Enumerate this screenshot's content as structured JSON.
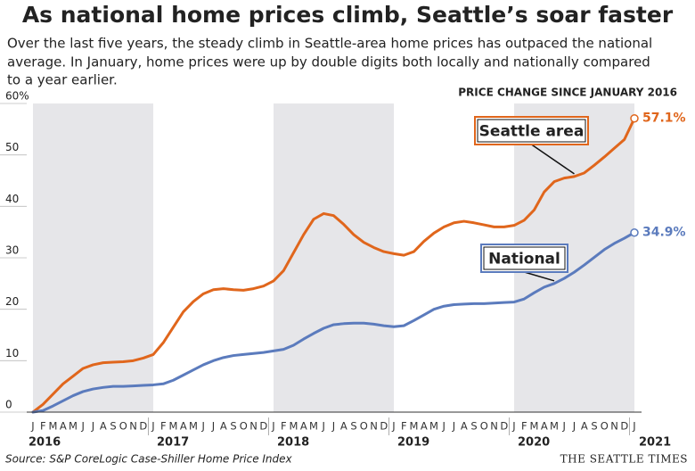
{
  "chart_data": {
    "type": "line",
    "title": "As national home prices climb, Seattle’s soar faster",
    "subtitle_lines": [
      "Over the last five years, the steady climb in Seattle-area home prices has outpaced the national",
      "average. In January, home prices were up by double digits both locally and nationally compared",
      "to a year earlier."
    ],
    "y_label": "PRICE CHANGE SINCE JANUARY 2016",
    "source": "Source: S&P CoreLogic Case-Shiller Home Price Index",
    "credit": "THE SEATTLE TIMES",
    "categories": [
      "J",
      "F",
      "M",
      "A",
      "M",
      "J",
      "J",
      "A",
      "S",
      "O",
      "N",
      "D",
      "J",
      "F",
      "M",
      "A",
      "M",
      "J",
      "J",
      "A",
      "S",
      "O",
      "N",
      "D",
      "J",
      "F",
      "M",
      "A",
      "M",
      "J",
      "J",
      "A",
      "S",
      "O",
      "N",
      "D",
      "J",
      "F",
      "M",
      "A",
      "M",
      "J",
      "J",
      "A",
      "S",
      "O",
      "N",
      "D",
      "J",
      "F",
      "M",
      "A",
      "M",
      "J",
      "J",
      "A",
      "S",
      "O",
      "N",
      "D",
      "J"
    ],
    "years": [
      "2016",
      "2017",
      "2018",
      "2019",
      "2020",
      "2021"
    ],
    "ylim": [
      0,
      60
    ],
    "yticks": [
      0,
      10,
      20,
      30,
      40,
      50,
      {
        "value": 60,
        "label": "60%"
      }
    ],
    "series": [
      {
        "name": "Seattle area",
        "color": "#e0661c",
        "values": [
          0,
          1.5,
          3.5,
          5.5,
          7,
          8.5,
          9.2,
          9.6,
          9.7,
          9.8,
          10,
          10.5,
          11.2,
          13.5,
          16.5,
          19.5,
          21.5,
          23,
          23.8,
          24,
          23.8,
          23.7,
          24,
          24.5,
          25.5,
          27.5,
          31,
          34.5,
          37.5,
          38.6,
          38.2,
          36.5,
          34.5,
          33,
          32,
          31.2,
          30.8,
          30.5,
          31.2,
          33.2,
          34.8,
          36,
          36.8,
          37.1,
          36.8,
          36.4,
          36,
          36,
          36.3,
          37.3,
          39.3,
          42.8,
          44.8,
          45.5,
          45.8,
          46.5,
          48,
          49.6,
          51.3,
          53,
          57.1
        ],
        "value_labels": [
          null,
          null,
          null,
          null,
          null,
          null,
          null,
          null,
          null,
          null,
          null,
          null,
          null,
          null,
          null,
          null,
          null,
          null,
          null,
          null,
          null,
          null,
          null,
          null,
          null,
          null,
          null,
          null,
          null,
          null,
          null,
          null,
          null,
          null,
          null,
          null,
          null,
          null,
          null,
          null,
          null,
          null,
          null,
          null,
          null,
          null,
          null,
          null,
          null,
          null,
          null,
          null,
          null,
          null,
          null,
          null,
          null,
          null,
          null,
          null,
          "57.1%"
        ]
      },
      {
        "name": "National",
        "color": "#5b7bbd",
        "values": [
          0,
          0.3,
          1.2,
          2.2,
          3.2,
          4,
          4.5,
          4.8,
          5,
          5,
          5.1,
          5.2,
          5.3,
          5.5,
          6.2,
          7.2,
          8.2,
          9.2,
          10,
          10.6,
          11,
          11.2,
          11.4,
          11.6,
          11.9,
          12.2,
          13,
          14.2,
          15.3,
          16.3,
          17,
          17.2,
          17.3,
          17.3,
          17.1,
          16.8,
          16.6,
          16.8,
          17.8,
          18.9,
          20,
          20.6,
          20.9,
          21,
          21.1,
          21.1,
          21.2,
          21.3,
          21.4,
          22,
          23.2,
          24.3,
          25,
          26,
          27.2,
          28.6,
          30.1,
          31.6,
          32.8,
          33.8,
          34.9
        ],
        "value_labels": [
          null,
          null,
          null,
          null,
          null,
          null,
          null,
          null,
          null,
          null,
          null,
          null,
          null,
          null,
          null,
          null,
          null,
          null,
          null,
          null,
          null,
          null,
          null,
          null,
          null,
          null,
          null,
          null,
          null,
          null,
          null,
          null,
          null,
          null,
          null,
          null,
          null,
          null,
          null,
          null,
          null,
          null,
          null,
          null,
          null,
          null,
          null,
          null,
          null,
          null,
          null,
          null,
          null,
          null,
          null,
          null,
          null,
          null,
          null,
          null,
          "34.9%"
        ]
      }
    ]
  }
}
